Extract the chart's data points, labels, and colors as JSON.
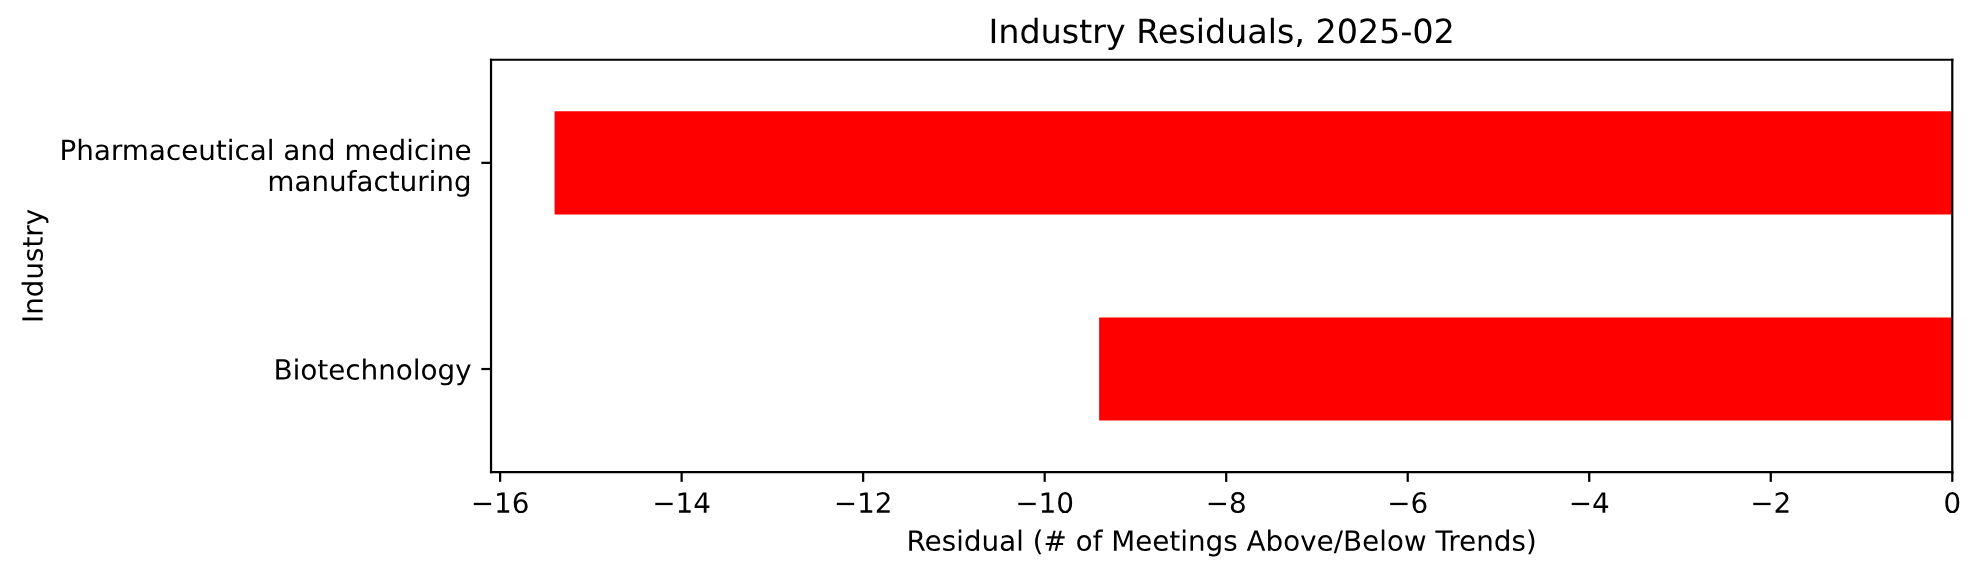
{
  "chart_data": {
    "type": "bar",
    "orientation": "horizontal",
    "title": "Industry Residuals, 2025-02",
    "xlabel": "Residual (# of Meetings Above/Below Trends)",
    "ylabel": "Industry",
    "categories": [
      "Pharmaceutical and medicine\nmanufacturing",
      "Biotechnology"
    ],
    "values": [
      -15.4,
      -9.4
    ],
    "color": "#ff0000",
    "xlim": [
      -16.1,
      0
    ],
    "xticks": [
      -16,
      -14,
      -12,
      -10,
      -8,
      -6,
      -4,
      -2,
      0
    ],
    "grid": false,
    "legend": false
  }
}
